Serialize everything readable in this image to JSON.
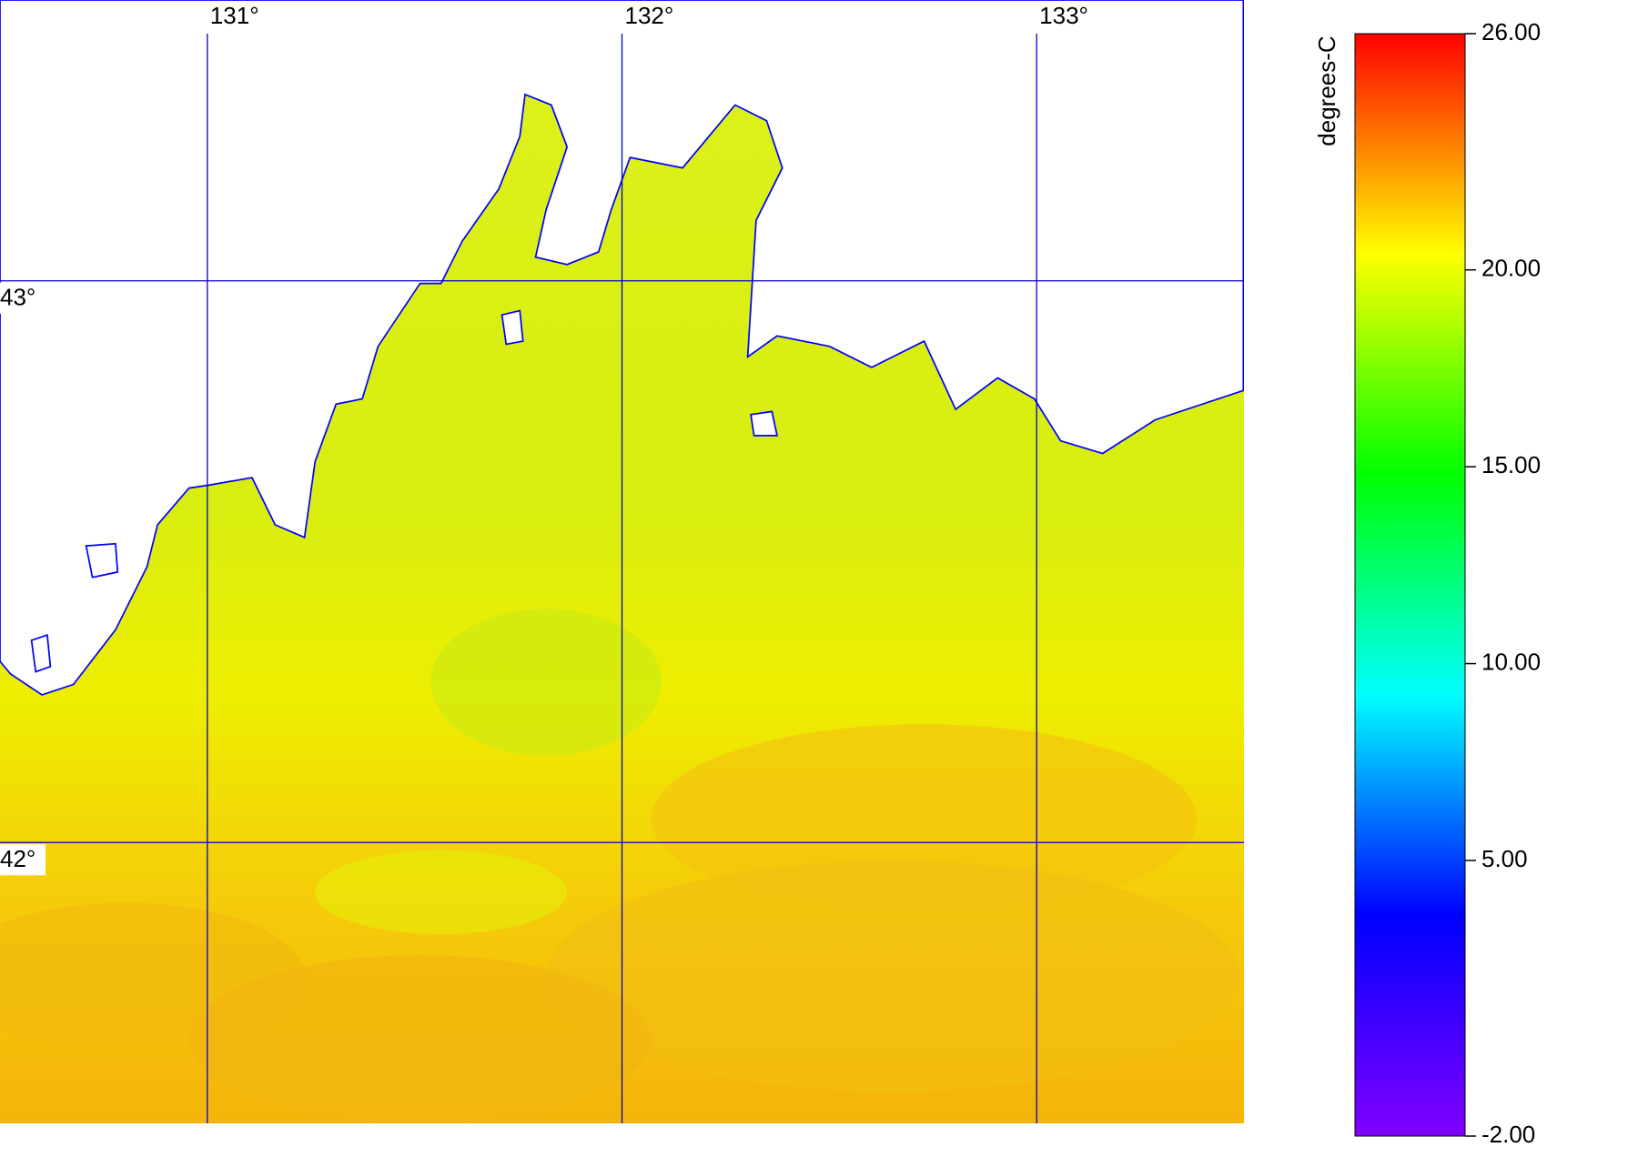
{
  "map": {
    "lon_range": [
      130.5,
      133.5
    ],
    "lat_range": [
      41.5,
      43.5
    ],
    "lon_ticks": [
      {
        "value": 131,
        "label": "131°"
      },
      {
        "value": 132,
        "label": "132°"
      },
      {
        "value": 133,
        "label": "133°"
      }
    ],
    "lat_ticks": [
      {
        "value": 43,
        "label": "43°"
      },
      {
        "value": 42,
        "label": "42°"
      }
    ],
    "grid_color": "#0000cc"
  },
  "colorbar": {
    "title": "degrees-C",
    "range": [
      -2,
      26
    ],
    "ticks": [
      {
        "value": 26,
        "label": "26.00"
      },
      {
        "value": 20,
        "label": "20.00"
      },
      {
        "value": 15,
        "label": "15.00"
      },
      {
        "value": 10,
        "label": "10.00"
      },
      {
        "value": 5,
        "label": "5.00"
      },
      {
        "value": -2,
        "label": "-2.00"
      }
    ],
    "colors": [
      "#8000ff",
      "#0000ff",
      "#00ffff",
      "#00ff00",
      "#ffff00",
      "#ff0000"
    ]
  }
}
